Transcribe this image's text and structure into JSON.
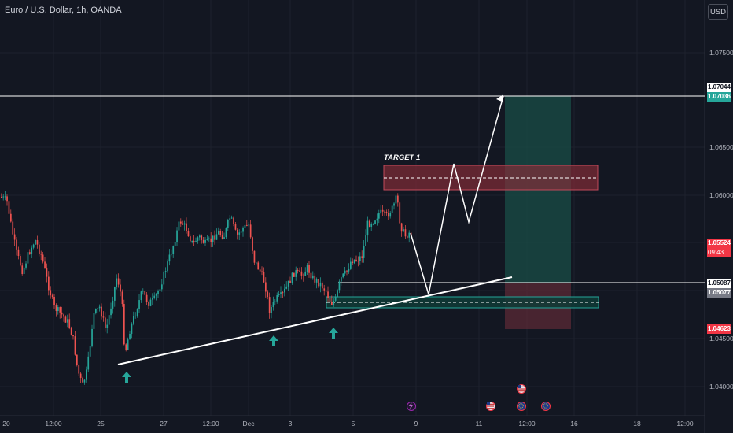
{
  "header": {
    "title": "Euro / U.S. Dollar, 1h, OANDA",
    "currency_button": "USD"
  },
  "price_axis": {
    "ticks": [
      "1.07500",
      "1.06500",
      "1.06000",
      "1.04500",
      "1.04000"
    ],
    "labels": {
      "upper_1": "1.07044",
      "upper_2": "1.07036",
      "current": "1.05524",
      "countdown": "09:43",
      "line_2": "1.05087",
      "line_3": "1.05077",
      "stop": "1.04623"
    }
  },
  "time_axis": {
    "ticks": [
      "20",
      "12:00",
      "25",
      "27",
      "12:00",
      "Dec",
      "3",
      "5",
      "9",
      "11",
      "12:00",
      "16",
      "18",
      "12:00"
    ]
  },
  "annotations": {
    "target_label": "TARGET 1"
  },
  "colors": {
    "background": "#131722",
    "bull": "#26a69a",
    "bear": "#ef5350",
    "resistance_fill": "#8b2c39",
    "support_fill": "#0f3b36"
  },
  "events": [
    {
      "icon": "lightning-icon"
    },
    {
      "icon": "us-flag-icon"
    },
    {
      "icon": "us-flag-icon"
    },
    {
      "icon": "eu-flag-icon"
    },
    {
      "icon": "eu-flag-icon"
    }
  ]
}
